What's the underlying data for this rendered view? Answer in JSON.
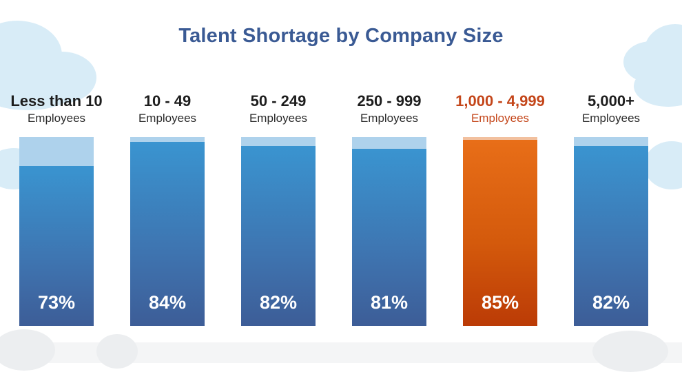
{
  "chart_data": {
    "type": "bar",
    "title": "Talent Shortage by Company Size",
    "categories": [
      {
        "label": "Less than 10",
        "sub": "Employees"
      },
      {
        "label": "10 - 49",
        "sub": "Employees"
      },
      {
        "label": "50 - 249",
        "sub": "Employees"
      },
      {
        "label": "250 - 999",
        "sub": "Employees"
      },
      {
        "label": "1,000 - 4,999",
        "sub": "Employees"
      },
      {
        "label": "5,000+",
        "sub": "Employees"
      }
    ],
    "values": [
      73,
      84,
      82,
      81,
      85,
      82
    ],
    "value_labels": [
      "73%",
      "84%",
      "82%",
      "81%",
      "85%",
      "82%"
    ],
    "ylim": [
      0,
      100
    ],
    "highlight_index": 4,
    "colors": {
      "title": "#3a5a94",
      "bar": "#3a84c4",
      "bar_track": "#aed2ec",
      "highlight_bar": "#d45a0c",
      "highlight_track": "#f2c09e",
      "highlight_label": "#c4461a"
    }
  }
}
